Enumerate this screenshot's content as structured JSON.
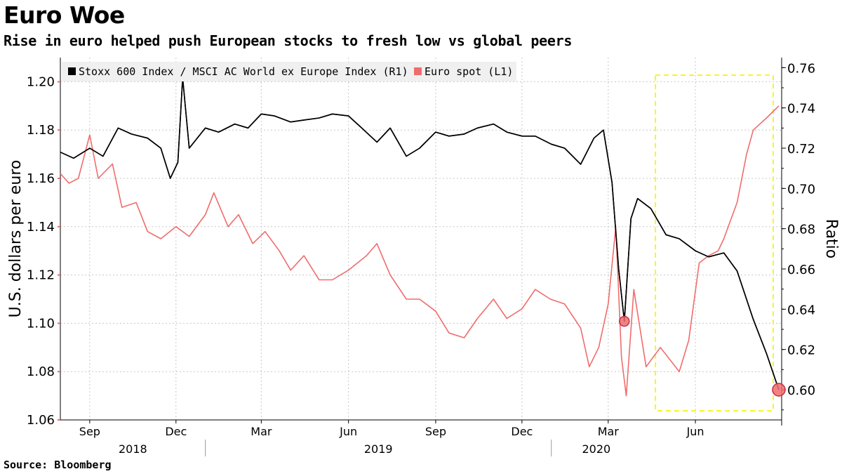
{
  "title": "Euro Woe",
  "subtitle": "Rise in euro helped push European stocks to fresh low vs global peers",
  "source": "Source: Bloomberg",
  "chart_data": {
    "type": "line",
    "x_range": [
      "2018-08-01",
      "2020-08-31"
    ],
    "x_ticks": [
      "Sep",
      "Dec",
      "Mar",
      "Jun",
      "Sep",
      "Dec",
      "Mar",
      "Jun"
    ],
    "years": [
      "2018",
      "2019",
      "2020"
    ],
    "left_axis": {
      "label": "U.S. dollars per euro",
      "range": [
        1.06,
        1.21
      ],
      "ticks": [
        "1.06",
        "1.08",
        "1.10",
        "1.12",
        "1.14",
        "1.16",
        "1.18",
        "1.20"
      ]
    },
    "right_axis": {
      "label": "Ratio",
      "range": [
        0.585,
        0.765
      ],
      "ticks": [
        "0.60",
        "0.62",
        "0.64",
        "0.66",
        "0.68",
        "0.70",
        "0.72",
        "0.74",
        "0.76"
      ]
    },
    "colors": {
      "ratio": "#000000",
      "euro": "#f06c6c",
      "highlight": "#f5f52a",
      "marker": "#f06c6c"
    },
    "series": [
      {
        "name": "Stoxx 600 Index / MSCI AC World ex Europe Index (R1)",
        "axis": "right",
        "dates": [
          "2018-08-01",
          "2018-08-15",
          "2018-09-01",
          "2018-09-15",
          "2018-10-01",
          "2018-10-15",
          "2018-11-01",
          "2018-11-15",
          "2018-11-25",
          "2018-12-03",
          "2018-12-08",
          "2018-12-15",
          "2019-01-01",
          "2019-01-15",
          "2019-02-01",
          "2019-02-15",
          "2019-03-01",
          "2019-03-15",
          "2019-04-01",
          "2019-04-15",
          "2019-05-01",
          "2019-05-15",
          "2019-06-01",
          "2019-06-15",
          "2019-07-01",
          "2019-07-15",
          "2019-08-01",
          "2019-08-15",
          "2019-09-01",
          "2019-09-15",
          "2019-10-01",
          "2019-10-15",
          "2019-11-01",
          "2019-11-15",
          "2019-12-01",
          "2019-12-15",
          "2020-01-01",
          "2020-01-15",
          "2020-02-01",
          "2020-02-15",
          "2020-02-25",
          "2020-03-05",
          "2020-03-12",
          "2020-03-18",
          "2020-03-25",
          "2020-04-01",
          "2020-04-15",
          "2020-05-01",
          "2020-05-15",
          "2020-06-01",
          "2020-06-15",
          "2020-07-01",
          "2020-07-15",
          "2020-08-01",
          "2020-08-15",
          "2020-08-28"
        ],
        "values": [
          0.718,
          0.715,
          0.72,
          0.716,
          0.73,
          0.727,
          0.725,
          0.72,
          0.705,
          0.713,
          0.755,
          0.72,
          0.73,
          0.728,
          0.732,
          0.73,
          0.737,
          0.736,
          0.733,
          0.734,
          0.735,
          0.737,
          0.736,
          0.73,
          0.723,
          0.73,
          0.716,
          0.72,
          0.728,
          0.726,
          0.727,
          0.73,
          0.732,
          0.728,
          0.726,
          0.726,
          0.722,
          0.72,
          0.712,
          0.725,
          0.729,
          0.703,
          0.66,
          0.634,
          0.685,
          0.695,
          0.69,
          0.677,
          0.675,
          0.669,
          0.666,
          0.668,
          0.659,
          0.635,
          0.618,
          0.6
        ]
      },
      {
        "name": "Euro spot (L1)",
        "axis": "left",
        "dates": [
          "2018-08-01",
          "2018-08-10",
          "2018-08-20",
          "2018-09-01",
          "2018-09-10",
          "2018-09-25",
          "2018-10-05",
          "2018-10-20",
          "2018-11-01",
          "2018-11-15",
          "2018-12-01",
          "2018-12-15",
          "2019-01-01",
          "2019-01-10",
          "2019-01-25",
          "2019-02-05",
          "2019-02-20",
          "2019-03-05",
          "2019-03-20",
          "2019-04-01",
          "2019-04-15",
          "2019-05-01",
          "2019-05-15",
          "2019-06-01",
          "2019-06-20",
          "2019-07-01",
          "2019-07-15",
          "2019-08-01",
          "2019-08-15",
          "2019-09-01",
          "2019-09-15",
          "2019-10-01",
          "2019-10-15",
          "2019-11-01",
          "2019-11-15",
          "2019-12-01",
          "2019-12-15",
          "2019-12-31",
          "2020-01-15",
          "2020-02-01",
          "2020-02-10",
          "2020-02-20",
          "2020-03-01",
          "2020-03-09",
          "2020-03-15",
          "2020-03-20",
          "2020-03-28",
          "2020-04-10",
          "2020-04-25",
          "2020-05-05",
          "2020-05-15",
          "2020-05-25",
          "2020-06-05",
          "2020-06-15",
          "2020-06-25",
          "2020-07-01",
          "2020-07-15",
          "2020-07-25",
          "2020-08-01",
          "2020-08-15",
          "2020-08-28"
        ],
        "values": [
          1.162,
          1.158,
          1.16,
          1.178,
          1.16,
          1.166,
          1.148,
          1.15,
          1.138,
          1.135,
          1.14,
          1.136,
          1.145,
          1.154,
          1.14,
          1.145,
          1.133,
          1.138,
          1.13,
          1.122,
          1.128,
          1.118,
          1.118,
          1.122,
          1.128,
          1.133,
          1.12,
          1.11,
          1.11,
          1.105,
          1.096,
          1.094,
          1.102,
          1.11,
          1.102,
          1.106,
          1.114,
          1.11,
          1.108,
          1.098,
          1.082,
          1.09,
          1.108,
          1.14,
          1.086,
          1.07,
          1.114,
          1.082,
          1.09,
          1.085,
          1.08,
          1.093,
          1.125,
          1.128,
          1.13,
          1.135,
          1.15,
          1.17,
          1.18,
          1.185,
          1.19
        ]
      }
    ],
    "markers": [
      {
        "series": "Stoxx 600 Index / MSCI AC World ex Europe Index (R1)",
        "date": "2020-03-18",
        "value": 0.634
      },
      {
        "series": "Stoxx 600 Index / MSCI AC World ex Europe Index (R1)",
        "date": "2020-08-28",
        "value": 0.6
      }
    ],
    "highlight_box": {
      "from": "2020-04-25",
      "to": "2020-08-31"
    },
    "legend": [
      "Stoxx 600 Index / MSCI AC World ex Europe Index (R1)",
      "Euro spot (L1)"
    ],
    "legend_position": "top-left",
    "grid": true
  }
}
